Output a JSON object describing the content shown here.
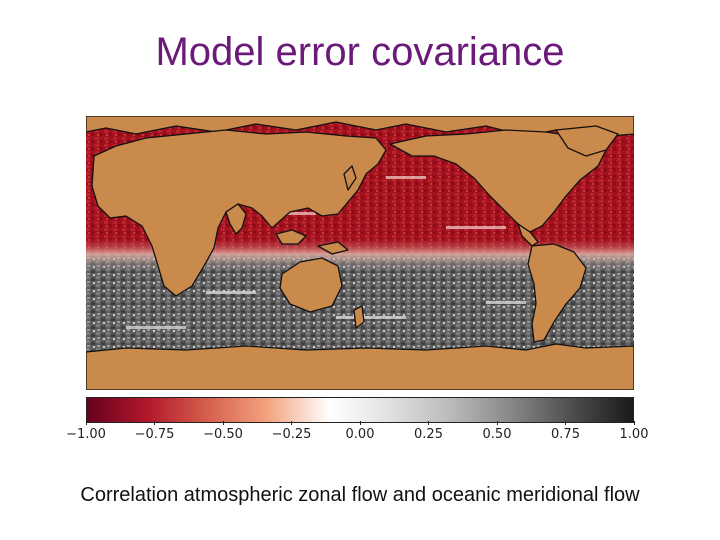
{
  "slide": {
    "title": "Model error covariance",
    "caption": "Correlation atmospheric zonal flow and oceanic meridional flow"
  },
  "colors": {
    "land": "#c98a4b",
    "coast": "#111111",
    "title": "#6b1a7a"
  },
  "colorbar": {
    "min": -1.0,
    "max": 1.0,
    "ticks": [
      "−1.00",
      "−0.75",
      "−0.50",
      "−0.25",
      "0.00",
      "0.25",
      "0.50",
      "0.75",
      "1.00"
    ],
    "colormap": [
      "#67001f",
      "#b2182b",
      "#d6604d",
      "#f4a582",
      "#ffffff",
      "#e0e0e0",
      "#bababa",
      "#878787",
      "#4d4d4d",
      "#1a1a1a"
    ]
  }
}
